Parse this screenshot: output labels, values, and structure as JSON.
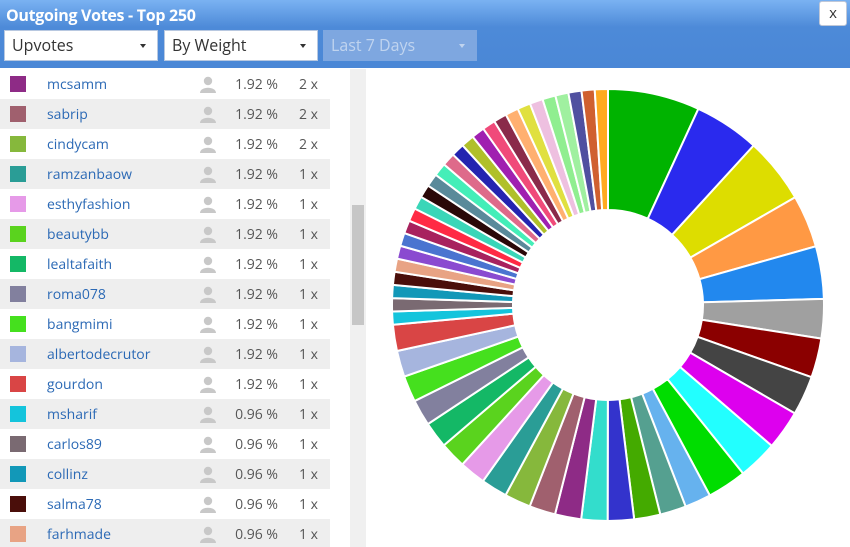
{
  "header": {
    "title": "Outgoing Votes - Top 250",
    "close": "x"
  },
  "controls": [
    "Upvotes",
    "By Weight",
    "Last 7 Days"
  ],
  "rows": [
    {
      "color": "#8e2b86",
      "name": "mcsamm",
      "percent": "1.92 %",
      "count": "2 x"
    },
    {
      "color": "#a0606e",
      "name": "sabrip",
      "percent": "1.92 %",
      "count": "2 x"
    },
    {
      "color": "#86b83c",
      "name": "cindycam",
      "percent": "1.92 %",
      "count": "2 x"
    },
    {
      "color": "#2a9d96",
      "name": "ramzanbaow",
      "percent": "1.92 %",
      "count": "1 x"
    },
    {
      "color": "#e69ae8",
      "name": "esthyfashion",
      "percent": "1.92 %",
      "count": "1 x"
    },
    {
      "color": "#5ad31e",
      "name": "beautybb",
      "percent": "1.92 %",
      "count": "1 x"
    },
    {
      "color": "#14b866",
      "name": "lealtafaith",
      "percent": "1.92 %",
      "count": "1 x"
    },
    {
      "color": "#82809e",
      "name": "roma078",
      "percent": "1.92 %",
      "count": "1 x"
    },
    {
      "color": "#45e01e",
      "name": "bangmimi",
      "percent": "1.92 %",
      "count": "1 x"
    },
    {
      "color": "#a6b5de",
      "name": "albertodecrutor",
      "percent": "1.92 %",
      "count": "1 x"
    },
    {
      "color": "#d94545",
      "name": "gourdon",
      "percent": "1.92 %",
      "count": "1 x"
    },
    {
      "color": "#14c4dc",
      "name": "msharif",
      "percent": "0.96 %",
      "count": "1 x"
    },
    {
      "color": "#7a6a72",
      "name": "carlos89",
      "percent": "0.96 %",
      "count": "1 x"
    },
    {
      "color": "#1298b8",
      "name": "collinz",
      "percent": "0.96 %",
      "count": "1 x"
    },
    {
      "color": "#4a0e0a",
      "name": "salma78",
      "percent": "0.96 %",
      "count": "1 x"
    },
    {
      "color": "#e8a384",
      "name": "farhmade",
      "percent": "0.96 %",
      "count": "1 x"
    }
  ],
  "donut": {
    "segments": [
      {
        "color": "#00b300",
        "value": 6.73
      },
      {
        "color": "#2a2aee",
        "value": 4.81
      },
      {
        "color": "#dddd00",
        "value": 4.81
      },
      {
        "color": "#ff9944",
        "value": 3.85
      },
      {
        "color": "#2288ee",
        "value": 3.85
      },
      {
        "color": "#a0a0a0",
        "value": 2.88
      },
      {
        "color": "#8b0000",
        "value": 2.88
      },
      {
        "color": "#444444",
        "value": 2.88
      },
      {
        "color": "#dd00ee",
        "value": 2.88
      },
      {
        "color": "#22ffff",
        "value": 2.88
      },
      {
        "color": "#00dd00",
        "value": 2.88
      },
      {
        "color": "#66b2ee",
        "value": 1.92
      },
      {
        "color": "#55a090",
        "value": 1.92
      },
      {
        "color": "#44aa00",
        "value": 1.92
      },
      {
        "color": "#3333cc",
        "value": 1.92
      },
      {
        "color": "#33ddcc",
        "value": 1.92
      },
      {
        "color": "#8e2b86",
        "value": 1.92
      },
      {
        "color": "#a0606e",
        "value": 1.92
      },
      {
        "color": "#86b83c",
        "value": 1.92
      },
      {
        "color": "#2a9d96",
        "value": 1.92
      },
      {
        "color": "#e69ae8",
        "value": 1.92
      },
      {
        "color": "#5ad31e",
        "value": 1.92
      },
      {
        "color": "#14b866",
        "value": 1.92
      },
      {
        "color": "#82809e",
        "value": 1.92
      },
      {
        "color": "#45e01e",
        "value": 1.92
      },
      {
        "color": "#a6b5de",
        "value": 1.92
      },
      {
        "color": "#d94545",
        "value": 1.92
      },
      {
        "color": "#14c4dc",
        "value": 0.96
      },
      {
        "color": "#7a6a72",
        "value": 0.96
      },
      {
        "color": "#1298b8",
        "value": 0.96
      },
      {
        "color": "#4a0e0a",
        "value": 0.96
      },
      {
        "color": "#e8a384",
        "value": 0.96
      },
      {
        "color": "#8a4ad0",
        "value": 0.96
      },
      {
        "color": "#4a74d0",
        "value": 0.96
      },
      {
        "color": "#a8225e",
        "value": 0.96
      },
      {
        "color": "#ff2a44",
        "value": 0.96
      },
      {
        "color": "#3ad6b8",
        "value": 0.96
      },
      {
        "color": "#2a0808",
        "value": 0.96
      },
      {
        "color": "#5a8a9a",
        "value": 0.96
      },
      {
        "color": "#44eeb8",
        "value": 0.96
      },
      {
        "color": "#de6a8a",
        "value": 0.96
      },
      {
        "color": "#2424b0",
        "value": 0.96
      },
      {
        "color": "#b0c02a",
        "value": 0.96
      },
      {
        "color": "#a020b0",
        "value": 0.96
      },
      {
        "color": "#f04a7a",
        "value": 0.96
      },
      {
        "color": "#8a2a4a",
        "value": 0.96
      },
      {
        "color": "#ffb070",
        "value": 0.96
      },
      {
        "color": "#e0e040",
        "value": 0.96
      },
      {
        "color": "#eec0e0",
        "value": 0.96
      },
      {
        "color": "#90ee90",
        "value": 0.96
      },
      {
        "color": "#a0f0a0",
        "value": 0.96
      },
      {
        "color": "#5050a0",
        "value": 0.96
      },
      {
        "color": "#d06030",
        "value": 0.96
      },
      {
        "color": "#ffaa20",
        "value": 0.96
      }
    ]
  }
}
